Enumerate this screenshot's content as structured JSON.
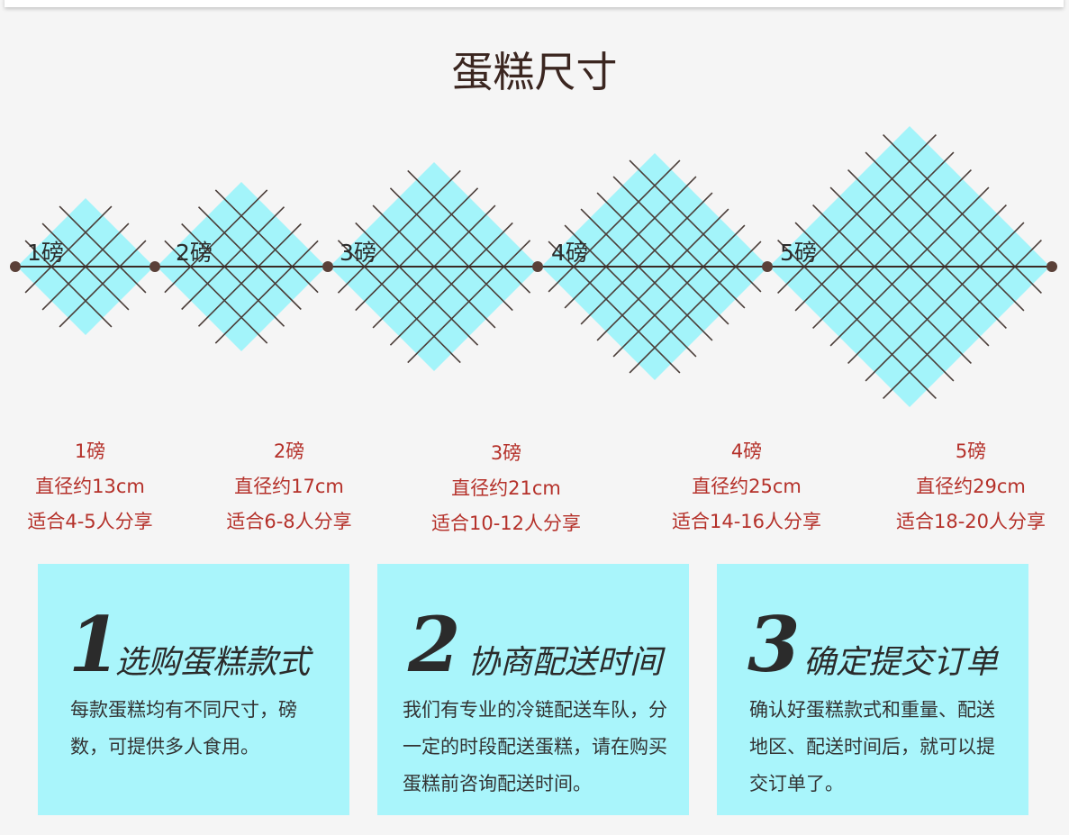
{
  "title": "蛋糕尺寸",
  "colors": {
    "cake": "#a3f4fa",
    "grid": "#4a3d38",
    "dot": "#5a4038",
    "label": "#b5312a",
    "card": "#a9f5fb"
  },
  "sizes": [
    {
      "marker": "1磅",
      "name": "1磅",
      "diameter": "直径约13cm",
      "serves": "适合4-5人分享"
    },
    {
      "marker": "2磅",
      "name": "2磅",
      "diameter": "直径约17cm",
      "serves": "适合6-8人分享"
    },
    {
      "marker": "3磅",
      "name": "3磅",
      "diameter": "直径约21cm",
      "serves": "适合10-12人分享"
    },
    {
      "marker": "4磅",
      "name": "4磅",
      "diameter": "直径约25cm",
      "serves": "适合14-16人分享"
    },
    {
      "marker": "5磅",
      "name": "5磅",
      "diameter": "直径约29cm",
      "serves": "适合18-20人分享"
    }
  ],
  "steps": [
    {
      "number": "1",
      "title": "选购蛋糕款式",
      "body": "每款蛋糕均有不同尺寸，磅数，可提供多人食用。"
    },
    {
      "number": "2",
      "title": "协商配送时间",
      "body": "我们有专业的冷链配送车队，分一定的时段配送蛋糕，请在购买蛋糕前咨询配送时间。"
    },
    {
      "number": "3",
      "title": "确定提交订单",
      "body": "确认好蛋糕款式和重量、配送地区、配送时间后，就可以提交订单了。"
    }
  ]
}
